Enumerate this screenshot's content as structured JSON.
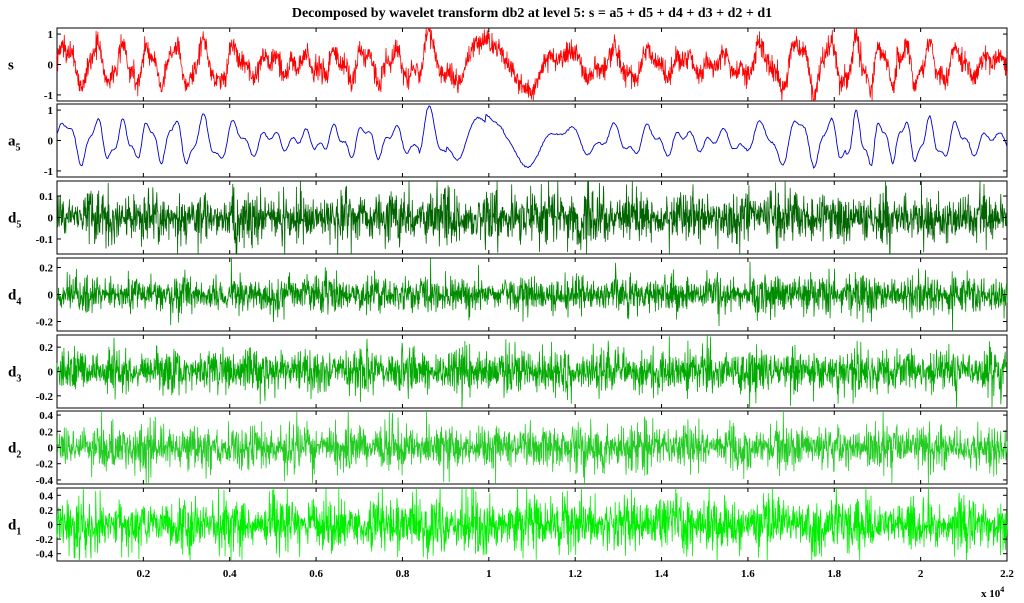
{
  "chart_data": {
    "type": "line",
    "title": "Decomposed by wavelet transform db2 at level 5: s = a5 + d5 + d4 + d3 + d2 + d1",
    "x_axis": {
      "range": [
        0,
        22000
      ],
      "ticks": [
        2000,
        4000,
        6000,
        8000,
        10000,
        12000,
        14000,
        16000,
        18000,
        20000,
        22000
      ],
      "tick_labels": [
        "0.2",
        "0.4",
        "0.6",
        "0.8",
        "1",
        "1.2",
        "1.4",
        "1.6",
        "1.8",
        "2",
        "2.2"
      ],
      "multiplier_label": "x 10",
      "multiplier_exponent": "4"
    },
    "series": [
      {
        "name": "s",
        "label_main": "s",
        "label_sub": "",
        "color": "#ff0000",
        "ylim": [
          -1.2,
          1.2
        ],
        "yticks": [
          1,
          0,
          -1
        ],
        "ytick_labels": [
          "1",
          "0",
          "-1"
        ],
        "kind": "signal",
        "amplitude": 0.55,
        "noise": 0.18
      },
      {
        "name": "a5",
        "label_main": "a",
        "label_sub": "5",
        "color": "#0000cc",
        "ylim": [
          -1.2,
          1.2
        ],
        "yticks": [
          1,
          0,
          -1
        ],
        "ytick_labels": [
          "1",
          "0",
          "-1"
        ],
        "kind": "approx",
        "amplitude": 0.55,
        "noise": 0.02
      },
      {
        "name": "d5",
        "label_main": "d",
        "label_sub": "5",
        "color": "#006400",
        "ylim": [
          -0.17,
          0.17
        ],
        "yticks": [
          0.1,
          0,
          -0.1
        ],
        "ytick_labels": [
          "0.1",
          "0",
          "-0.1"
        ],
        "kind": "detail",
        "amplitude": 0.05,
        "noise": 0.0
      },
      {
        "name": "d4",
        "label_main": "d",
        "label_sub": "4",
        "color": "#008c00",
        "ylim": [
          -0.27,
          0.27
        ],
        "yticks": [
          0.2,
          0,
          -0.2
        ],
        "ytick_labels": [
          "0.2",
          "0",
          "-0.2"
        ],
        "kind": "detail",
        "amplitude": 0.06,
        "noise": 0.0
      },
      {
        "name": "d3",
        "label_main": "d",
        "label_sub": "3",
        "color": "#00aa00",
        "ylim": [
          -0.3,
          0.3
        ],
        "yticks": [
          0.2,
          0,
          -0.2
        ],
        "ytick_labels": [
          "0.2",
          "0",
          "-0.2"
        ],
        "kind": "detail",
        "amplitude": 0.08,
        "noise": 0.0
      },
      {
        "name": "d2",
        "label_main": "d",
        "label_sub": "2",
        "color": "#22cc22",
        "ylim": [
          -0.45,
          0.45
        ],
        "yticks": [
          0.4,
          0.2,
          0,
          -0.2,
          -0.4
        ],
        "ytick_labels": [
          "0.4",
          "0.2",
          "0",
          "-0.2",
          "-0.4"
        ],
        "kind": "detail",
        "amplitude": 0.12,
        "noise": 0.0
      },
      {
        "name": "d1",
        "label_main": "d",
        "label_sub": "1",
        "color": "#00ee00",
        "ylim": [
          -0.5,
          0.5
        ],
        "yticks": [
          0.4,
          0.2,
          0,
          -0.2,
          -0.4
        ],
        "ytick_labels": [
          "0.4",
          "0.2",
          "0",
          "-0.2",
          "-0.4"
        ],
        "kind": "detail",
        "amplitude": 0.16,
        "noise": 0.0
      }
    ],
    "grid": false,
    "legend": "none"
  }
}
